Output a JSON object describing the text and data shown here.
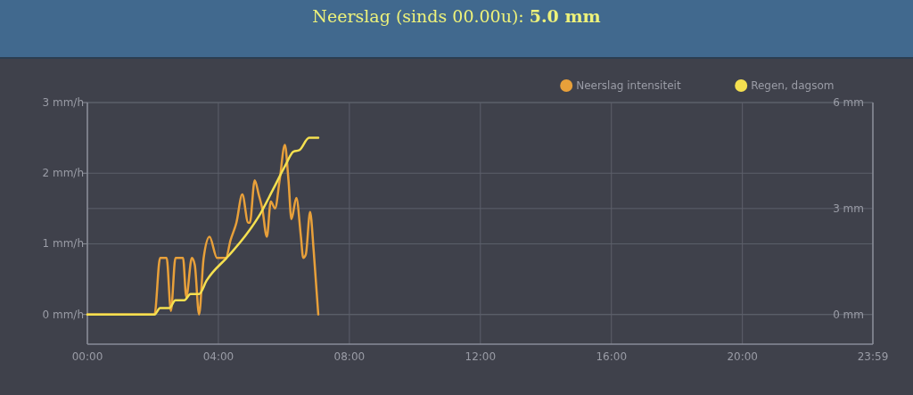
{
  "chart_data": {
    "type": "line",
    "title": "Neerslag (sinds 00.00u):",
    "annotations": [
      "5.0 mm"
    ],
    "xlim": [
      0,
      23.983
    ],
    "xticks": [
      {
        "value": 0,
        "label": "00:00"
      },
      {
        "value": 4,
        "label": "04:00"
      },
      {
        "value": 8,
        "label": "08:00"
      },
      {
        "value": 12,
        "label": "12:00"
      },
      {
        "value": 16,
        "label": "16:00"
      },
      {
        "value": 20,
        "label": "20:00"
      },
      {
        "value": 23.983,
        "label": "23:59"
      }
    ],
    "ylim": [
      -0.42,
      3
    ],
    "yticks": [
      {
        "value": 0,
        "label": "0 mm/h"
      },
      {
        "value": 1,
        "label": "1 mm/h"
      },
      {
        "value": 2,
        "label": "2 mm/h"
      },
      {
        "value": 3,
        "label": "3 mm/h"
      }
    ],
    "y2lim": [
      -0.84,
      6
    ],
    "y2ticks": [
      {
        "value": 0,
        "label": "0 mm"
      },
      {
        "value": 3,
        "label": "3 mm"
      },
      {
        "value": 6,
        "label": "6 mm"
      }
    ],
    "grid": true,
    "legend": "top right",
    "marker": "none",
    "series": [
      {
        "name": "Neerslag intensiteit",
        "color": "#e8a03a",
        "x": [
          0,
          2.05,
          2.22,
          2.42,
          2.55,
          2.69,
          2.92,
          3.02,
          3.19,
          3.28,
          3.41,
          3.55,
          3.73,
          3.96,
          4.23,
          4.37,
          4.55,
          4.73,
          4.91,
          4.96,
          5.11,
          5.23,
          5.34,
          5.48,
          5.6,
          5.73,
          5.87,
          6.03,
          6.14,
          6.23,
          6.38,
          6.52,
          6.59,
          6.67,
          6.8,
          6.91,
          7.05
        ],
        "values": [
          0,
          0,
          0.8,
          0.8,
          0.05,
          0.8,
          0.8,
          0.25,
          0.8,
          0.7,
          0,
          0.8,
          1.1,
          0.8,
          0.8,
          1.05,
          1.3,
          1.7,
          1.3,
          1.3,
          1.9,
          1.7,
          1.5,
          1.1,
          1.6,
          1.5,
          1.9,
          2.4,
          1.9,
          1.35,
          1.65,
          1.1,
          0.8,
          0.85,
          1.45,
          0.9,
          0
        ]
      },
      {
        "name": "Regen, dagsom",
        "color": "#f5e050",
        "axis": "y2",
        "x": [
          0,
          2.05,
          2.22,
          2.5,
          2.69,
          2.96,
          3.15,
          3.41,
          3.64,
          4.32,
          4.8,
          5.23,
          5.68,
          6.05,
          6.29,
          6.47,
          6.77,
          7.05
        ],
        "values": [
          0,
          0,
          0.18,
          0.18,
          0.4,
          0.4,
          0.58,
          0.58,
          0.96,
          1.67,
          2.2,
          2.77,
          3.56,
          4.23,
          4.61,
          4.65,
          5.0,
          5.0
        ]
      }
    ]
  }
}
